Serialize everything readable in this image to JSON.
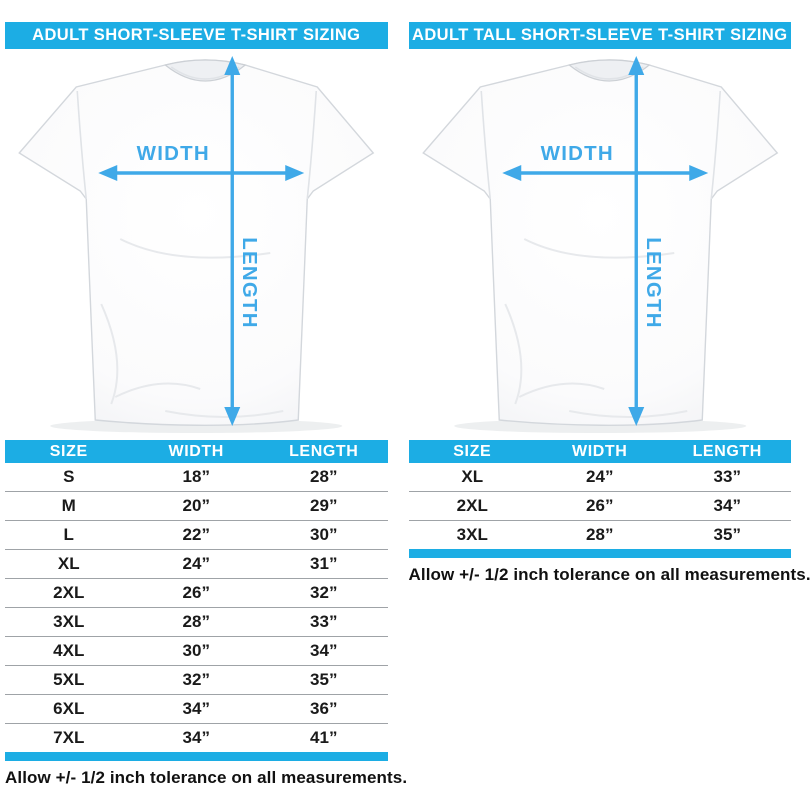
{
  "colors": {
    "accent": "#1cade4",
    "arrow": "#3fa9e8"
  },
  "panels": [
    {
      "header": "ADULT SHORT-SLEEVE T-SHIRT SIZING",
      "diagram": {
        "width_label": "WIDTH",
        "length_label": "LENGTH"
      },
      "table": {
        "columns": [
          "SIZE",
          "WIDTH",
          "LENGTH"
        ],
        "rows": [
          [
            "S",
            "18”",
            "28”"
          ],
          [
            "M",
            "20”",
            "29”"
          ],
          [
            "L",
            "22”",
            "30”"
          ],
          [
            "XL",
            "24”",
            "31”"
          ],
          [
            "2XL",
            "26”",
            "32”"
          ],
          [
            "3XL",
            "28”",
            "33”"
          ],
          [
            "4XL",
            "30”",
            "34”"
          ],
          [
            "5XL",
            "32”",
            "35”"
          ],
          [
            "6XL",
            "34”",
            "36”"
          ],
          [
            "7XL",
            "34”",
            "41”"
          ]
        ]
      },
      "note": "Allow +/- 1/2 inch tolerance on all measurements."
    },
    {
      "header": "ADULT TALL SHORT-SLEEVE T-SHIRT SIZING",
      "diagram": {
        "width_label": "WIDTH",
        "length_label": "LENGTH"
      },
      "table": {
        "columns": [
          "SIZE",
          "WIDTH",
          "LENGTH"
        ],
        "rows": [
          [
            "XL",
            "24”",
            "33”"
          ],
          [
            "2XL",
            "26”",
            "34”"
          ],
          [
            "3XL",
            "28”",
            "35”"
          ]
        ]
      },
      "note": "Allow +/- 1/2 inch tolerance on all measurements."
    }
  ]
}
